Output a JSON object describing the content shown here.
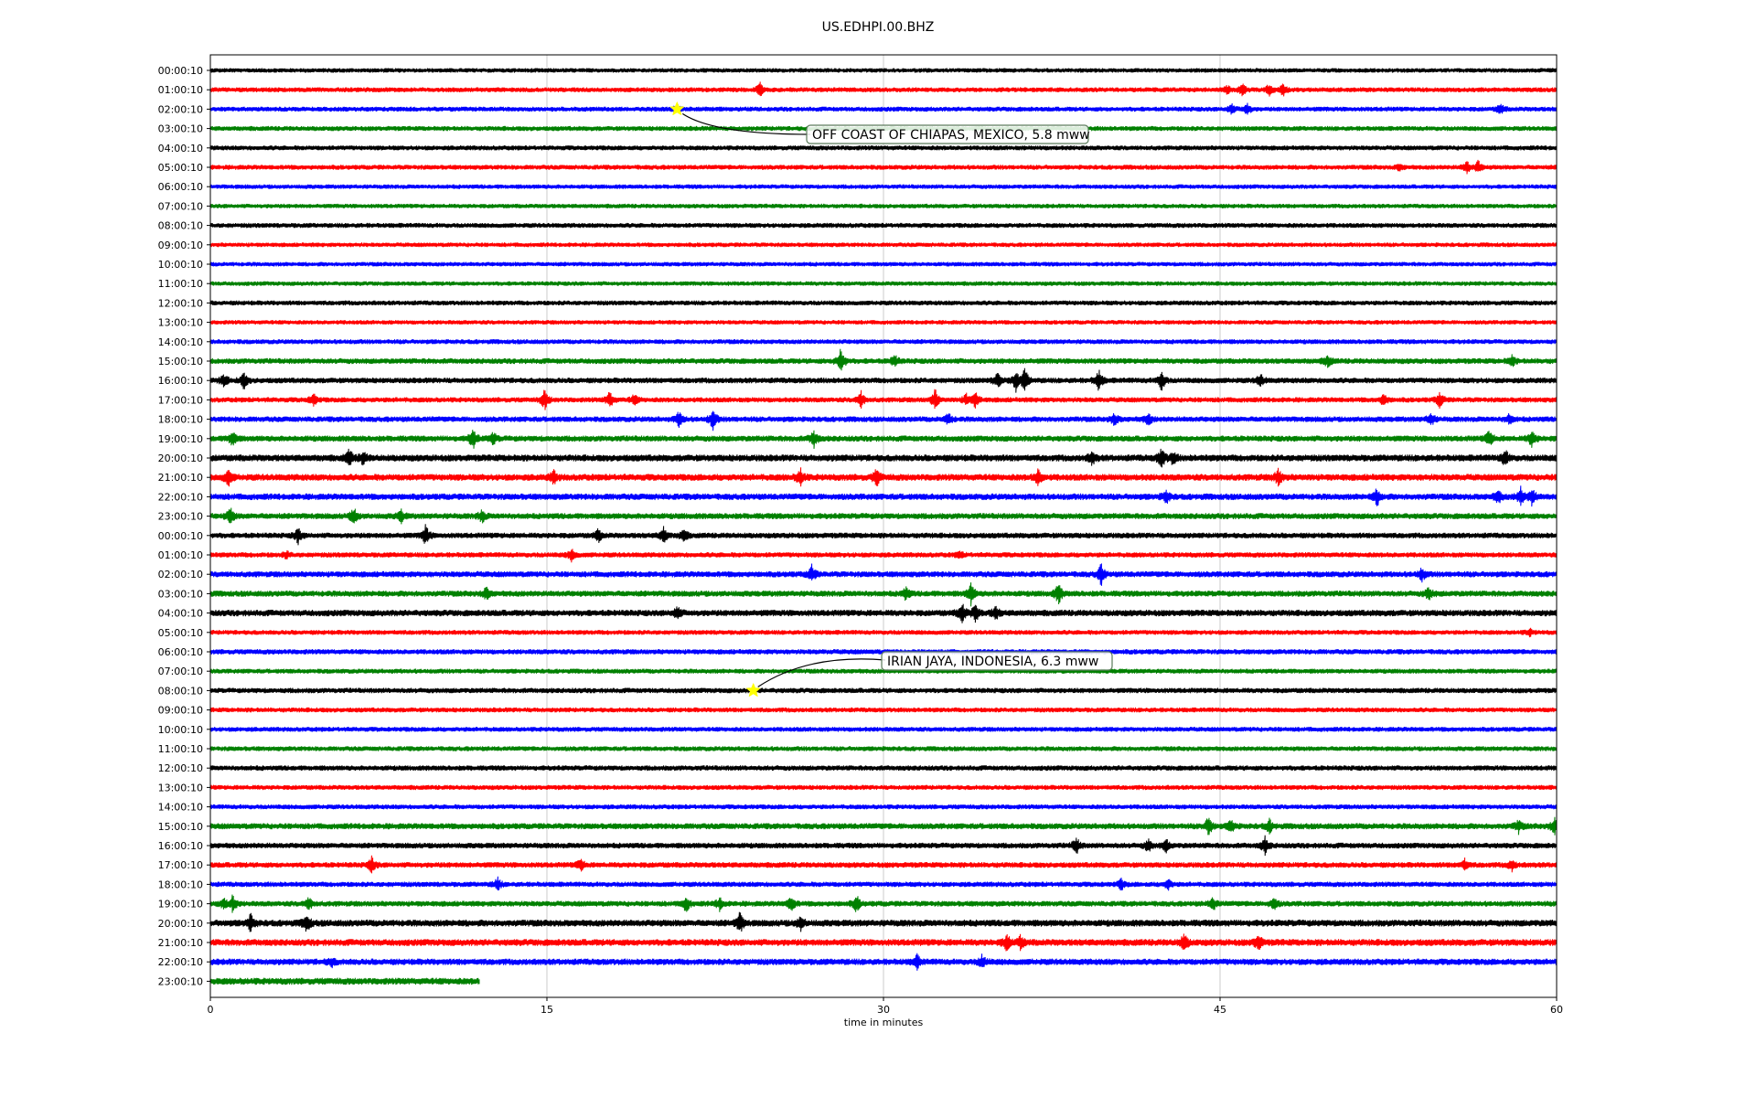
{
  "chart_data": {
    "type": "line",
    "title": "US.EDHPI.00.BHZ",
    "xlabel": "time in minutes",
    "ylabel": "",
    "xlim": [
      0,
      60
    ],
    "x_ticks": [
      0,
      15,
      30,
      45,
      60
    ],
    "grid": "vertical lines at x ticks",
    "trace_colors": [
      "#000000",
      "#ff0000",
      "#0000ff",
      "#008000"
    ],
    "row_labels": [
      "00:00:10",
      "01:00:10",
      "02:00:10",
      "03:00:10",
      "04:00:10",
      "05:00:10",
      "06:00:10",
      "07:00:10",
      "08:00:10",
      "09:00:10",
      "10:00:10",
      "11:00:10",
      "12:00:10",
      "13:00:10",
      "14:00:10",
      "15:00:10",
      "16:00:10",
      "17:00:10",
      "18:00:10",
      "19:00:10",
      "20:00:10",
      "21:00:10",
      "22:00:10",
      "23:00:10",
      "00:00:10",
      "01:00:10",
      "02:00:10",
      "03:00:10",
      "04:00:10",
      "05:00:10",
      "06:00:10",
      "07:00:10",
      "08:00:10",
      "09:00:10",
      "10:00:10",
      "11:00:10",
      "12:00:10",
      "13:00:10",
      "14:00:10",
      "15:00:10",
      "16:00:10",
      "17:00:10",
      "18:00:10",
      "19:00:10",
      "20:00:10",
      "21:00:10",
      "22:00:10",
      "23:00:10"
    ],
    "last_row_end_minute": 12,
    "rows": [
      {
        "noise": 0.4,
        "events": []
      },
      {
        "noise": 0.5,
        "events": [
          [
            24.5,
            3
          ],
          [
            45.3,
            2.5
          ],
          [
            46.0,
            3
          ],
          [
            47.2,
            3
          ],
          [
            47.8,
            3
          ]
        ]
      },
      {
        "noise": 0.5,
        "events": [
          [
            20.8,
            2
          ],
          [
            45.5,
            2.5
          ],
          [
            46.2,
            3
          ],
          [
            57.5,
            2.5
          ]
        ]
      },
      {
        "noise": 0.5,
        "events": []
      },
      {
        "noise": 0.5,
        "events": []
      },
      {
        "noise": 0.5,
        "events": [
          [
            53,
            1.5
          ],
          [
            56.0,
            3
          ],
          [
            56.5,
            3
          ]
        ]
      },
      {
        "noise": 0.4,
        "events": []
      },
      {
        "noise": 0.4,
        "events": []
      },
      {
        "noise": 0.5,
        "events": []
      },
      {
        "noise": 0.4,
        "events": []
      },
      {
        "noise": 0.4,
        "events": []
      },
      {
        "noise": 0.4,
        "events": []
      },
      {
        "noise": 0.5,
        "events": []
      },
      {
        "noise": 0.4,
        "events": []
      },
      {
        "noise": 0.5,
        "events": []
      },
      {
        "noise": 0.7,
        "events": [
          [
            28.1,
            7
          ],
          [
            30.5,
            3
          ],
          [
            49.8,
            3
          ],
          [
            58.0,
            2.5
          ]
        ]
      },
      {
        "noise": 0.7,
        "events": [
          [
            0.6,
            3
          ],
          [
            1.5,
            4
          ],
          [
            35.1,
            4
          ],
          [
            35.9,
            5
          ],
          [
            36.3,
            6
          ],
          [
            39.6,
            5
          ],
          [
            42.4,
            5
          ],
          [
            46.8,
            3
          ]
        ]
      },
      {
        "noise": 0.6,
        "events": [
          [
            4.6,
            3
          ],
          [
            14.9,
            5
          ],
          [
            17.8,
            4
          ],
          [
            18.9,
            2.5
          ],
          [
            29.0,
            4
          ],
          [
            32.3,
            5
          ],
          [
            33.7,
            3
          ],
          [
            34.1,
            4
          ],
          [
            52.3,
            3
          ],
          [
            54.8,
            4
          ]
        ]
      },
      {
        "noise": 0.7,
        "events": [
          [
            20.9,
            4
          ],
          [
            22.4,
            5
          ],
          [
            32.9,
            3
          ],
          [
            40.3,
            3
          ],
          [
            41.8,
            3
          ],
          [
            54.4,
            3
          ],
          [
            57.9,
            2.5
          ]
        ]
      },
      {
        "noise": 0.8,
        "events": [
          [
            1.0,
            4
          ],
          [
            11.7,
            5
          ],
          [
            12.6,
            3
          ],
          [
            26.9,
            4
          ],
          [
            57.0,
            4
          ],
          [
            58.9,
            4
          ]
        ]
      },
      {
        "noise": 1.0,
        "events": [
          [
            6.2,
            4
          ],
          [
            6.8,
            3
          ],
          [
            39.3,
            3
          ],
          [
            42.4,
            5
          ],
          [
            42.9,
            3
          ],
          [
            57.7,
            4
          ]
        ]
      },
      {
        "noise": 1.0,
        "events": [
          [
            0.8,
            4
          ],
          [
            15.3,
            3
          ],
          [
            26.3,
            4
          ],
          [
            29.7,
            4
          ],
          [
            36.9,
            4
          ],
          [
            47.6,
            4
          ]
        ]
      },
      {
        "noise": 0.9,
        "events": [
          [
            42.6,
            3
          ],
          [
            52.0,
            4
          ],
          [
            57.4,
            3
          ],
          [
            58.4,
            4
          ],
          [
            58.9,
            4
          ]
        ]
      },
      {
        "noise": 0.8,
        "events": [
          [
            0.9,
            4
          ],
          [
            6.4,
            4
          ],
          [
            8.5,
            3
          ],
          [
            12.1,
            3
          ]
        ]
      },
      {
        "noise": 0.7,
        "events": [
          [
            3.9,
            4
          ],
          [
            9.6,
            5
          ],
          [
            17.3,
            3
          ],
          [
            20.2,
            4
          ],
          [
            21.1,
            3
          ]
        ]
      },
      {
        "noise": 0.6,
        "events": [
          [
            3.4,
            1.5
          ],
          [
            16.1,
            3
          ],
          [
            33.4,
            1.5
          ]
        ]
      },
      {
        "noise": 0.8,
        "events": [
          [
            26.8,
            4
          ],
          [
            39.7,
            5
          ],
          [
            54.0,
            3
          ]
        ]
      },
      {
        "noise": 0.8,
        "events": [
          [
            12.3,
            3
          ],
          [
            31.0,
            3
          ],
          [
            33.9,
            5
          ],
          [
            37.8,
            5
          ],
          [
            54.3,
            3
          ]
        ]
      },
      {
        "noise": 0.9,
        "events": [
          [
            20.8,
            3
          ],
          [
            33.5,
            5
          ],
          [
            34.1,
            4
          ],
          [
            35.0,
            3
          ]
        ]
      },
      {
        "noise": 0.5,
        "events": [
          [
            58.8,
            1.5
          ]
        ]
      },
      {
        "noise": 0.6,
        "events": []
      },
      {
        "noise": 0.5,
        "events": []
      },
      {
        "noise": 0.6,
        "events": []
      },
      {
        "noise": 0.5,
        "events": []
      },
      {
        "noise": 0.5,
        "events": []
      },
      {
        "noise": 0.5,
        "events": []
      },
      {
        "noise": 0.6,
        "events": []
      },
      {
        "noise": 0.5,
        "events": []
      },
      {
        "noise": 0.5,
        "events": []
      },
      {
        "noise": 0.8,
        "events": [
          [
            44.5,
            5
          ],
          [
            45.5,
            3
          ],
          [
            47.2,
            3
          ],
          [
            58.3,
            3
          ],
          [
            59.9,
            4
          ]
        ]
      },
      {
        "noise": 0.7,
        "events": [
          [
            38.6,
            4
          ],
          [
            41.8,
            3
          ],
          [
            42.6,
            3
          ],
          [
            47.0,
            4
          ]
        ]
      },
      {
        "noise": 0.7,
        "events": [
          [
            7.2,
            4
          ],
          [
            16.5,
            3
          ],
          [
            55.9,
            2.5
          ],
          [
            58.0,
            2.5
          ]
        ]
      },
      {
        "noise": 0.6,
        "events": [
          [
            12.8,
            3
          ],
          [
            40.6,
            2.5
          ],
          [
            42.7,
            2.5
          ]
        ]
      },
      {
        "noise": 0.7,
        "events": [
          [
            0.6,
            3
          ],
          [
            1.0,
            4
          ],
          [
            4.4,
            3
          ],
          [
            21.2,
            4
          ],
          [
            22.7,
            3
          ],
          [
            25.9,
            4
          ],
          [
            28.8,
            4
          ],
          [
            44.7,
            3
          ],
          [
            47.4,
            3
          ]
        ]
      },
      {
        "noise": 1.0,
        "events": [
          [
            1.8,
            4
          ],
          [
            4.3,
            4
          ],
          [
            23.6,
            5
          ],
          [
            26.3,
            3
          ]
        ]
      },
      {
        "noise": 1.0,
        "events": [
          [
            35.5,
            4
          ],
          [
            36.1,
            3
          ],
          [
            43.4,
            4
          ],
          [
            46.7,
            4
          ]
        ]
      },
      {
        "noise": 0.9,
        "events": [
          [
            5.4,
            2
          ],
          [
            31.5,
            3
          ],
          [
            34.4,
            3
          ]
        ]
      },
      {
        "noise": 1.0,
        "events": []
      }
    ],
    "annotations": [
      {
        "text": "OFF COAST OF CHIAPAS, MEXICO, 5.8 mww",
        "row": 2,
        "minute": 20.8
      },
      {
        "text": "IRIAN JAYA, INDONESIA, 6.3 mww",
        "row": 32,
        "minute": 24.2
      }
    ],
    "marker_color": "#ffff00"
  }
}
